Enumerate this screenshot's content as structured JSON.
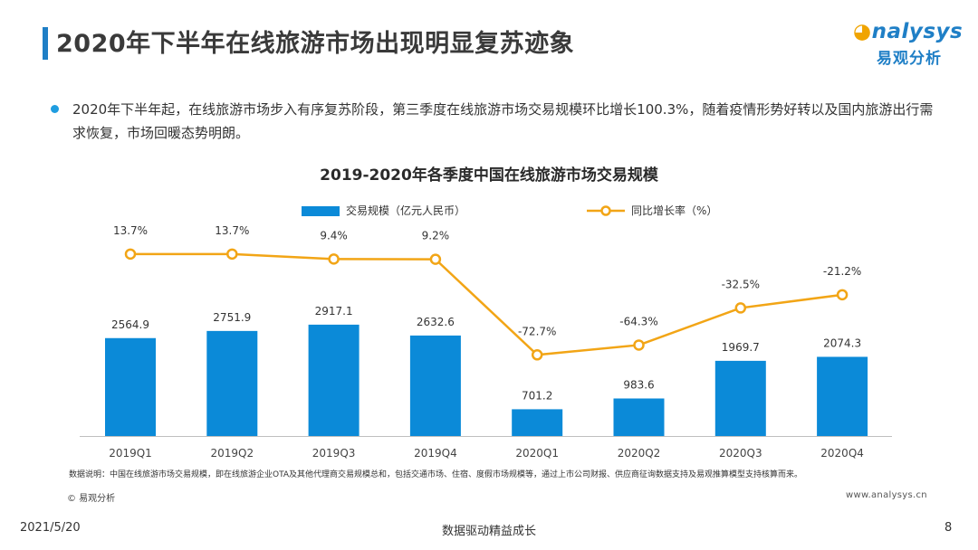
{
  "header": {
    "title": "2020年下半年在线旅游市场出现明显复苏迹象",
    "logo_en": "nalysys",
    "logo_cn": "易观分析"
  },
  "bullet": {
    "text": "2020年下半年起，在线旅游市场步入有序复苏阶段，第三季度在线旅游市场交易规模环比增长100.3%，随着疫情形势好转以及国内旅游出行需求恢复，市场回暖态势明朗。"
  },
  "chart_data": {
    "type": "bar",
    "title": "2019-2020年各季度中国在线旅游市场交易规模",
    "categories": [
      "2019Q1",
      "2019Q2",
      "2019Q3",
      "2019Q4",
      "2020Q1",
      "2020Q2",
      "2020Q3",
      "2020Q4"
    ],
    "series": [
      {
        "name": "交易规模（亿元人民币）",
        "type": "bar",
        "color": "#0b8ad8",
        "values": [
          2564.9,
          2751.9,
          2917.1,
          2632.6,
          701.2,
          983.6,
          1969.7,
          2074.3
        ],
        "labels": [
          "2564.9",
          "2751.9",
          "2917.1",
          "2632.6",
          "701.2",
          "983.6",
          "1969.7",
          "2074.3"
        ]
      },
      {
        "name": "同比增长率（%）",
        "type": "line",
        "color": "#f2a516",
        "values": [
          13.7,
          13.7,
          9.4,
          9.2,
          -72.7,
          -64.3,
          -32.5,
          -21.2
        ],
        "labels": [
          "13.7%",
          "13.7%",
          "9.4%",
          "9.2%",
          "-72.7%",
          "-64.3%",
          "-32.5%",
          "-21.2%"
        ]
      }
    ],
    "legend": "top-center",
    "grid": false
  },
  "footer": {
    "note": "数据说明：中国在线旅游市场交易规模，即在线旅游企业OTA及其他代理商交易规模总和，包括交通市场、住宿、度假市场规模等，通过上市公司财报、供应商征询数据支持及易观推算模型支持核算而来。",
    "source": "© 易观分析",
    "site": "www.analysys.cn",
    "date": "2021/5/20",
    "slogan": "数据驱动精益成长",
    "page": "8"
  }
}
